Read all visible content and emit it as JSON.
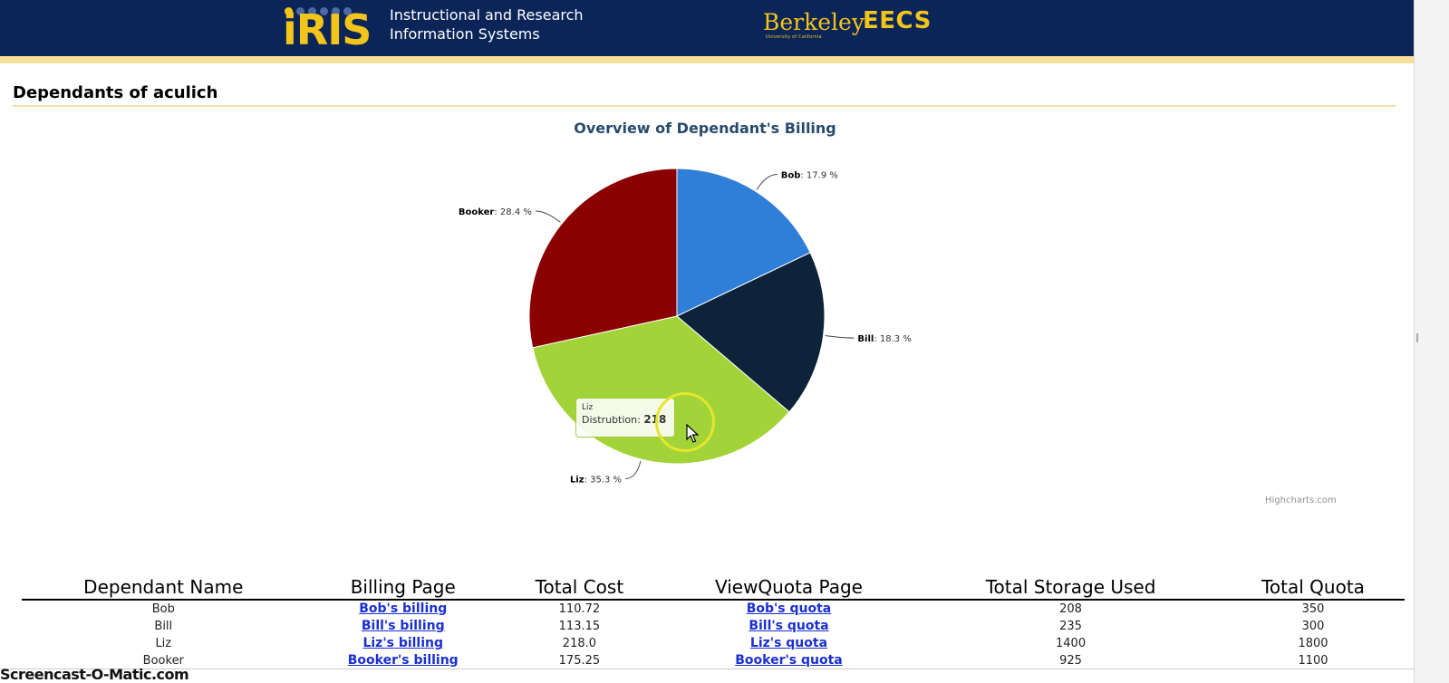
{
  "header": {
    "logo_text": "iRIS",
    "org_line1": "Instructional and Research",
    "org_line2": "Information Systems",
    "berkeley": "Berkeley",
    "berkeley_sub": "University of California",
    "eecs": "EECS"
  },
  "page": {
    "title": "Dependants of aculich"
  },
  "chart_data": {
    "type": "pie",
    "title": "Overview of Dependant's Billing",
    "series_name": "Distrubtion",
    "slices": [
      {
        "name": "Bob",
        "value": 17.9,
        "label": "17.9 %",
        "color": "#2f7ed8"
      },
      {
        "name": "Bill",
        "value": 18.3,
        "label": "18.3 %",
        "color": "#0d233a"
      },
      {
        "name": "Liz",
        "value": 35.3,
        "label": "35.3 %",
        "color": "#a2d43a"
      },
      {
        "name": "Booker",
        "value": 28.4,
        "label": "28.4 %",
        "color": "#8b0000"
      }
    ],
    "credits": "Highcharts.com",
    "tooltip": {
      "series_title": "Liz",
      "label": "Distrubtion:",
      "value": "218"
    }
  },
  "table": {
    "headers": [
      "Dependant Name",
      "Billing Page",
      "Total Cost",
      "ViewQuota Page",
      "Total Storage Used",
      "Total Quota"
    ],
    "rows": [
      {
        "name": "Bob",
        "billing": "Bob's billing",
        "cost": "110.72",
        "quota_link": "Bob's quota",
        "storage": "208",
        "quota": "350"
      },
      {
        "name": "Bill",
        "billing": "Bill's billing",
        "cost": "113.15",
        "quota_link": "Bill's quota",
        "storage": "235",
        "quota": "300"
      },
      {
        "name": "Liz",
        "billing": "Liz's billing",
        "cost": "218.0",
        "quota_link": "Liz's quota",
        "storage": "1400",
        "quota": "1800"
      },
      {
        "name": "Booker",
        "billing": "Booker's billing",
        "cost": "175.25",
        "quota_link": "Booker's quota",
        "storage": "925",
        "quota": "1100"
      }
    ]
  },
  "watermark": "Screencast-O-Matic.com"
}
